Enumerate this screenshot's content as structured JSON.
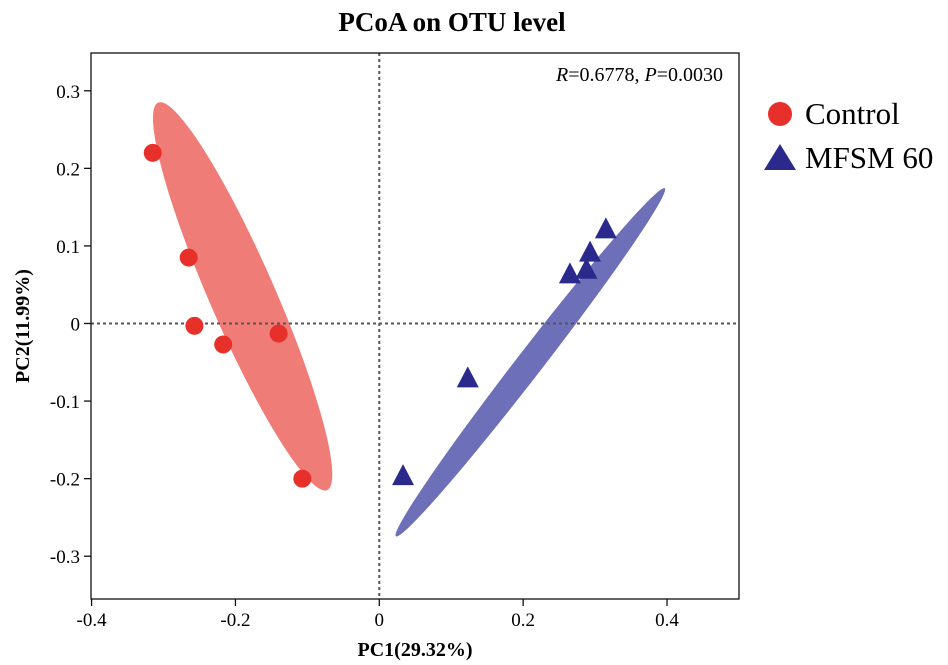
{
  "chart_data": {
    "type": "scatter",
    "title": "PCoA on OTU level",
    "xlabel": "PC1(29.32%)",
    "ylabel": "PC2(11.99%)",
    "xlim": [
      -0.4,
      0.5
    ],
    "ylim": [
      -0.35,
      0.35
    ],
    "x_ticks": [
      -0.4,
      -0.2,
      0,
      0.2,
      0.4
    ],
    "x_tick_labels": [
      "-0.4",
      "-0.2",
      "0",
      "0.2",
      "0.4"
    ],
    "y_ticks": [
      0.3,
      0.2,
      0.1,
      0,
      -0.1,
      -0.2,
      -0.3
    ],
    "y_tick_labels": [
      "0.3",
      "0.2",
      "0.1",
      "0",
      "-0.1",
      "-0.2",
      "-0.3"
    ],
    "reference_lines": {
      "x": 0,
      "y": 0,
      "style": "dotted"
    },
    "annotation": {
      "r_label": "R",
      "r_value": "=0.6778, ",
      "p_label": "P",
      "p_value": "=0.0030"
    },
    "legend_position": "right",
    "series": [
      {
        "name": "Control",
        "marker": "circle",
        "color": "#e8302b",
        "ellipse_color": "#f07c78",
        "points": [
          {
            "x": -0.315,
            "y": 0.22
          },
          {
            "x": -0.265,
            "y": 0.085
          },
          {
            "x": -0.257,
            "y": -0.003
          },
          {
            "x": -0.217,
            "y": -0.027
          },
          {
            "x": -0.14,
            "y": -0.013
          },
          {
            "x": -0.107,
            "y": -0.2
          }
        ],
        "ellipse": {
          "cx": -0.19,
          "cy": 0.035,
          "semi_major": 0.276,
          "semi_minor": 0.0448,
          "angle_deg": -64.8
        }
      },
      {
        "name": "MFSM 60",
        "marker": "triangle",
        "color": "#2b2a8c",
        "ellipse_color": "#6e6fb9",
        "points": [
          {
            "x": 0.315,
            "y": 0.12
          },
          {
            "x": 0.293,
            "y": 0.09
          },
          {
            "x": 0.288,
            "y": 0.068
          },
          {
            "x": 0.265,
            "y": 0.062
          },
          {
            "x": 0.123,
            "y": -0.072
          },
          {
            "x": 0.033,
            "y": -0.198
          }
        ],
        "ellipse": {
          "cx": 0.21,
          "cy": -0.05,
          "semi_major": 0.292,
          "semi_minor": 0.0175,
          "angle_deg": 50.2
        }
      }
    ]
  }
}
